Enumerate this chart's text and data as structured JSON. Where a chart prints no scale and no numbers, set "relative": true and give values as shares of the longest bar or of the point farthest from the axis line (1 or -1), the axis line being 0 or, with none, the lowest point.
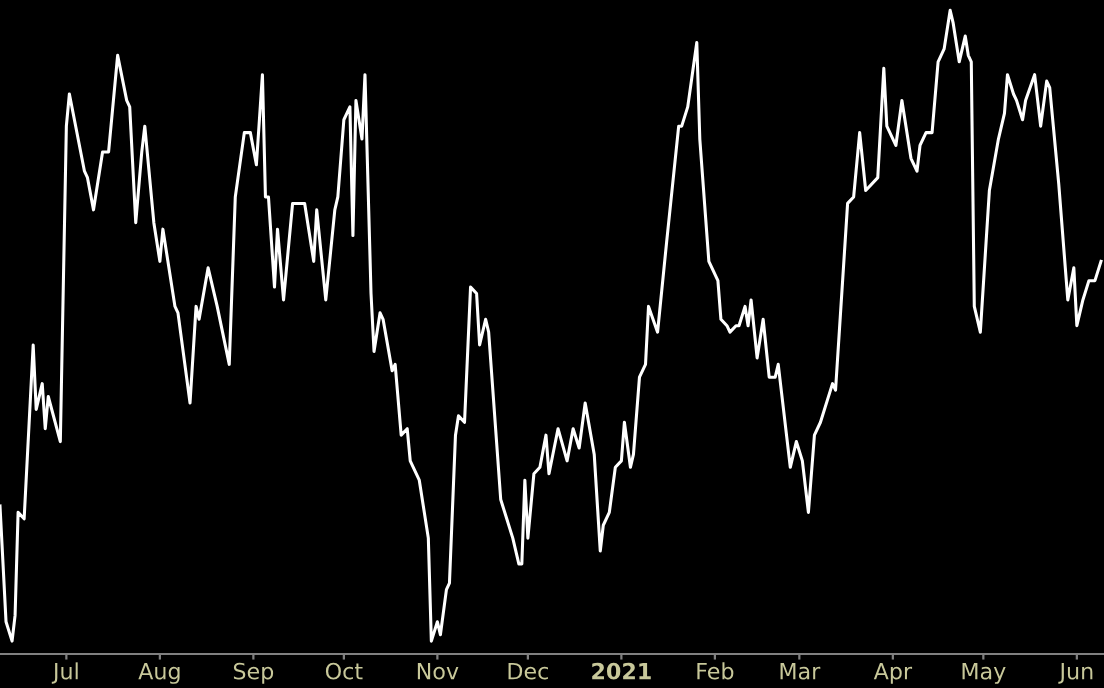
{
  "chart_data": {
    "type": "line",
    "relative": true,
    "marker": "none",
    "line_style": "solid",
    "tick_labels": "x",
    "xlim": [
      "2020-06-09",
      "2021-06-10"
    ],
    "xticks": [
      {
        "value": "2020-07-01",
        "label": "Jul"
      },
      {
        "value": "2020-08-01",
        "label": "Aug"
      },
      {
        "value": "2020-09-01",
        "label": "Sep"
      },
      {
        "value": "2020-10-01",
        "label": "Oct"
      },
      {
        "value": "2020-11-01",
        "label": "Nov"
      },
      {
        "value": "2020-12-01",
        "label": "Dec"
      },
      {
        "value": "2021-01-01",
        "label": "2021"
      },
      {
        "value": "2021-02-01",
        "label": "Feb"
      },
      {
        "value": "2021-03-01",
        "label": "Mar"
      },
      {
        "value": "2021-04-01",
        "label": "Apr"
      },
      {
        "value": "2021-05-01",
        "label": "May"
      },
      {
        "value": "2021-06-01",
        "label": "Jun"
      }
    ],
    "series": [
      {
        "color": "#ffffff",
        "x": [
          "2020-06-09",
          "2020-06-11",
          "2020-06-13",
          "2020-06-14",
          "2020-06-15",
          "2020-06-17",
          "2020-06-20",
          "2020-06-21",
          "2020-06-23",
          "2020-06-24",
          "2020-06-25",
          "2020-06-29",
          "2020-07-01",
          "2020-07-02",
          "2020-07-07",
          "2020-07-08",
          "2020-07-10",
          "2020-07-13",
          "2020-07-15",
          "2020-07-18",
          "2020-07-21",
          "2020-07-22",
          "2020-07-24",
          "2020-07-26",
          "2020-07-27",
          "2020-07-30",
          "2020-08-01",
          "2020-08-02",
          "2020-08-06",
          "2020-08-07",
          "2020-08-11",
          "2020-08-13",
          "2020-08-14",
          "2020-08-17",
          "2020-08-20",
          "2020-08-24",
          "2020-08-26",
          "2020-08-29",
          "2020-08-31",
          "2020-09-02",
          "2020-09-04",
          "2020-09-05",
          "2020-09-06",
          "2020-09-08",
          "2020-09-09",
          "2020-09-11",
          "2020-09-14",
          "2020-09-16",
          "2020-09-18",
          "2020-09-21",
          "2020-09-22",
          "2020-09-25",
          "2020-09-28",
          "2020-09-29",
          "2020-10-01",
          "2020-10-03",
          "2020-10-04",
          "2020-10-05",
          "2020-10-07",
          "2020-10-08",
          "2020-10-10",
          "2020-10-11",
          "2020-10-13",
          "2020-10-14",
          "2020-10-17",
          "2020-10-18",
          "2020-10-20",
          "2020-10-22",
          "2020-10-23",
          "2020-10-26",
          "2020-10-29",
          "2020-10-30",
          "2020-11-01",
          "2020-11-02",
          "2020-11-04",
          "2020-11-05",
          "2020-11-07",
          "2020-11-08",
          "2020-11-10",
          "2020-11-12",
          "2020-11-14",
          "2020-11-15",
          "2020-11-17",
          "2020-11-18",
          "2020-11-22",
          "2020-11-26",
          "2020-11-28",
          "2020-11-29",
          "2020-11-30",
          "2020-12-01",
          "2020-12-03",
          "2020-12-05",
          "2020-12-07",
          "2020-12-08",
          "2020-12-11",
          "2020-12-14",
          "2020-12-16",
          "2020-12-18",
          "2020-12-20",
          "2020-12-23",
          "2020-12-25",
          "2020-12-26",
          "2020-12-28",
          "2020-12-30",
          "2021-01-01",
          "2021-01-02",
          "2021-01-04",
          "2021-01-05",
          "2021-01-07",
          "2021-01-09",
          "2021-01-10",
          "2021-01-13",
          "2021-01-16",
          "2021-01-20",
          "2021-01-21",
          "2021-01-23",
          "2021-01-26",
          "2021-01-27",
          "2021-01-30",
          "2021-02-02",
          "2021-02-03",
          "2021-02-05",
          "2021-02-06",
          "2021-02-08",
          "2021-02-09",
          "2021-02-11",
          "2021-02-12",
          "2021-02-13",
          "2021-02-15",
          "2021-02-17",
          "2021-02-19",
          "2021-02-21",
          "2021-02-22",
          "2021-02-26",
          "2021-02-28",
          "2021-03-02",
          "2021-03-04",
          "2021-03-06",
          "2021-03-08",
          "2021-03-12",
          "2021-03-13",
          "2021-03-17",
          "2021-03-19",
          "2021-03-21",
          "2021-03-23",
          "2021-03-27",
          "2021-03-29",
          "2021-03-30",
          "2021-04-02",
          "2021-04-04",
          "2021-04-07",
          "2021-04-09",
          "2021-04-10",
          "2021-04-12",
          "2021-04-14",
          "2021-04-16",
          "2021-04-18",
          "2021-04-20",
          "2021-04-21",
          "2021-04-23",
          "2021-04-25",
          "2021-04-26",
          "2021-04-27",
          "2021-04-28",
          "2021-04-30",
          "2021-05-03",
          "2021-05-06",
          "2021-05-08",
          "2021-05-09",
          "2021-05-11",
          "2021-05-12",
          "2021-05-14",
          "2021-05-15",
          "2021-05-18",
          "2021-05-20",
          "2021-05-22",
          "2021-05-23",
          "2021-05-26",
          "2021-05-29",
          "2021-05-31",
          "2021-06-01",
          "2021-06-03",
          "2021-06-05",
          "2021-06-07",
          "2021-06-09"
        ],
        "values": [
          0.23,
          0.05,
          0.02,
          0.06,
          0.22,
          0.21,
          0.48,
          0.38,
          0.42,
          0.35,
          0.4,
          0.33,
          0.82,
          0.87,
          0.75,
          0.74,
          0.69,
          0.78,
          0.78,
          0.93,
          0.86,
          0.85,
          0.67,
          0.78,
          0.82,
          0.67,
          0.61,
          0.66,
          0.54,
          0.53,
          0.39,
          0.54,
          0.52,
          0.6,
          0.54,
          0.45,
          0.71,
          0.81,
          0.81,
          0.76,
          0.9,
          0.71,
          0.71,
          0.57,
          0.66,
          0.55,
          0.7,
          0.7,
          0.7,
          0.61,
          0.69,
          0.55,
          0.69,
          0.71,
          0.83,
          0.85,
          0.65,
          0.86,
          0.8,
          0.9,
          0.56,
          0.47,
          0.53,
          0.52,
          0.44,
          0.45,
          0.34,
          0.35,
          0.3,
          0.27,
          0.18,
          0.02,
          0.05,
          0.03,
          0.1,
          0.11,
          0.34,
          0.37,
          0.36,
          0.57,
          0.56,
          0.48,
          0.52,
          0.5,
          0.24,
          0.18,
          0.14,
          0.14,
          0.27,
          0.18,
          0.28,
          0.29,
          0.34,
          0.28,
          0.35,
          0.3,
          0.35,
          0.32,
          0.39,
          0.31,
          0.16,
          0.2,
          0.22,
          0.29,
          0.3,
          0.36,
          0.29,
          0.31,
          0.43,
          0.45,
          0.54,
          0.5,
          0.64,
          0.82,
          0.82,
          0.85,
          0.95,
          0.8,
          0.61,
          0.58,
          0.52,
          0.51,
          0.5,
          0.51,
          0.51,
          0.54,
          0.51,
          0.55,
          0.46,
          0.52,
          0.43,
          0.43,
          0.45,
          0.29,
          0.33,
          0.3,
          0.22,
          0.34,
          0.36,
          0.42,
          0.41,
          0.7,
          0.71,
          0.81,
          0.72,
          0.74,
          0.91,
          0.82,
          0.79,
          0.86,
          0.77,
          0.75,
          0.79,
          0.81,
          0.81,
          0.92,
          0.94,
          1.0,
          0.98,
          0.92,
          0.96,
          0.93,
          0.92,
          0.54,
          0.5,
          0.72,
          0.8,
          0.84,
          0.9,
          0.87,
          0.86,
          0.83,
          0.86,
          0.9,
          0.82,
          0.89,
          0.88,
          0.73,
          0.55,
          0.6,
          0.51,
          0.55,
          0.58,
          0.58,
          0.61
        ]
      }
    ]
  }
}
